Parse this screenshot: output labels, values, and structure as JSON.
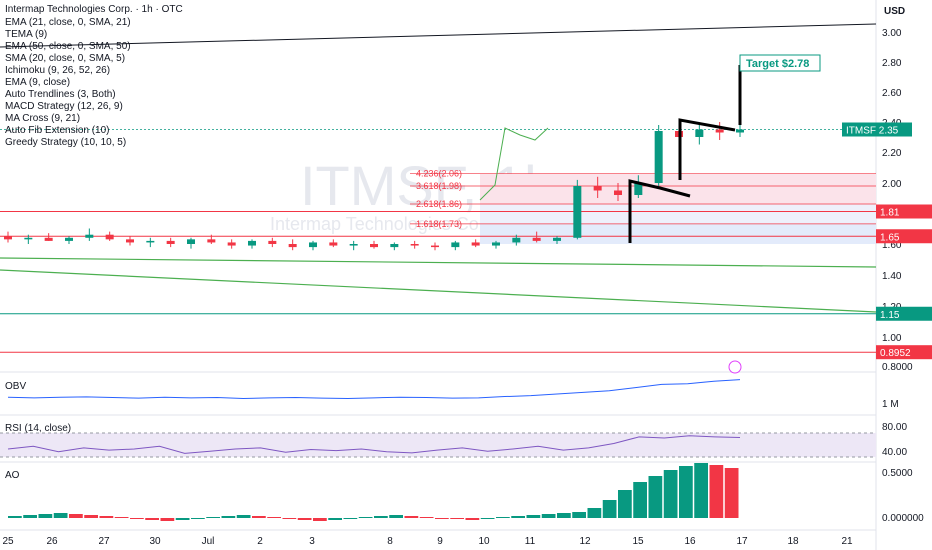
{
  "header": {
    "symbol_line": "Intermap Technologies Corp. · 1h · OTC",
    "currency": "USD",
    "watermark": "ITMSF, 1h",
    "watermark_sub": "Intermap Technologies Corp."
  },
  "indicators": [
    "EMA (21, close, 0, SMA, 21)",
    "TEMA (9)",
    "EMA (50, close, 0, SMA, 50)",
    "SMA (20, close, 0, SMA, 5)",
    "Ichimoku (9, 26, 52, 26)",
    "EMA (9, close)",
    "Auto Trendlines (3, Both)",
    "MACD Strategy (12, 26, 9)",
    "MA Cross (9, 21)",
    "Auto Fib Extension (10)",
    "Greedy Strategy (10, 10, 5)"
  ],
  "panes": {
    "obv": "OBV",
    "rsi": "RSI (14, close)",
    "ao": "AO"
  },
  "colors": {
    "up": "#089981",
    "down": "#f23645",
    "blue": "#2962ff",
    "green": "#4caf50",
    "black": "#000000",
    "fib_band": "#f7a8b8",
    "fib_blue": "#b2c4f0"
  },
  "chart_data": {
    "type": "candlestick",
    "title": "Intermap Technologies Corp. · 1h · OTC",
    "x_ticks": [
      "25",
      "26",
      "27",
      "30",
      "Jul",
      "2",
      "3",
      "8",
      "9",
      "10",
      "11",
      "12",
      "15",
      "16",
      "17",
      "18",
      "21"
    ],
    "price_ticks": [
      "3.00",
      "2.80",
      "2.60",
      "2.40",
      "2.20",
      "2.00",
      "1.80",
      "1.60",
      "1.40",
      "1.20",
      "1.00",
      "0.8000"
    ],
    "price_ylim": [
      0.8,
      3.05
    ],
    "price_labels": [
      {
        "text": "ITMSF",
        "value": "2.35",
        "color": "#089981"
      },
      {
        "text": "",
        "value": "1.81",
        "color": "#f23645"
      },
      {
        "text": "",
        "value": "1.65",
        "color": "#f23645"
      },
      {
        "text": "",
        "value": "1.15",
        "color": "#089981"
      },
      {
        "text": "",
        "value": "0.8952",
        "color": "#f23645"
      }
    ],
    "target": "Target $2.78",
    "fib_levels": [
      {
        "label": "4.236(2.06)",
        "value": 2.06
      },
      {
        "label": "3.618(1.98)",
        "value": 1.98
      },
      {
        "label": "2.618(1.86)",
        "value": 1.86
      },
      {
        "label": "1.618(1.73)",
        "value": 1.73
      }
    ],
    "obv_ticks": [
      "1 M"
    ],
    "rsi_ticks": [
      "80.00",
      "40.00"
    ],
    "ao_ticks": [
      "0.5000",
      "0.000000"
    ],
    "ohlc_approx": [
      [
        1.65,
        1.68,
        1.61,
        1.63
      ],
      [
        1.63,
        1.66,
        1.6,
        1.64
      ],
      [
        1.64,
        1.67,
        1.62,
        1.62
      ],
      [
        1.62,
        1.65,
        1.6,
        1.64
      ],
      [
        1.64,
        1.7,
        1.62,
        1.66
      ],
      [
        1.66,
        1.68,
        1.62,
        1.63
      ],
      [
        1.63,
        1.65,
        1.59,
        1.61
      ],
      [
        1.61,
        1.64,
        1.58,
        1.62
      ],
      [
        1.62,
        1.64,
        1.58,
        1.6
      ],
      [
        1.6,
        1.64,
        1.57,
        1.63
      ],
      [
        1.63,
        1.66,
        1.6,
        1.61
      ],
      [
        1.61,
        1.63,
        1.57,
        1.59
      ],
      [
        1.59,
        1.63,
        1.57,
        1.62
      ],
      [
        1.62,
        1.64,
        1.58,
        1.6
      ],
      [
        1.6,
        1.63,
        1.56,
        1.58
      ],
      [
        1.58,
        1.62,
        1.56,
        1.61
      ],
      [
        1.61,
        1.63,
        1.58,
        1.59
      ],
      [
        1.59,
        1.62,
        1.56,
        1.6
      ],
      [
        1.6,
        1.62,
        1.57,
        1.58
      ],
      [
        1.58,
        1.61,
        1.56,
        1.6
      ],
      [
        1.6,
        1.62,
        1.57,
        1.59
      ],
      [
        1.59,
        1.61,
        1.56,
        1.58
      ],
      [
        1.58,
        1.62,
        1.56,
        1.61
      ],
      [
        1.61,
        1.63,
        1.58,
        1.59
      ],
      [
        1.59,
        1.62,
        1.57,
        1.61
      ],
      [
        1.61,
        1.66,
        1.59,
        1.64
      ],
      [
        1.64,
        1.68,
        1.61,
        1.62
      ],
      [
        1.62,
        1.65,
        1.6,
        1.64
      ],
      [
        1.64,
        2.02,
        1.63,
        1.98
      ],
      [
        1.98,
        2.04,
        1.9,
        1.95
      ],
      [
        1.95,
        2.0,
        1.88,
        1.92
      ],
      [
        1.92,
        2.05,
        1.9,
        2.0
      ],
      [
        2.0,
        2.38,
        1.98,
        2.34
      ],
      [
        2.34,
        2.4,
        2.26,
        2.3
      ],
      [
        2.3,
        2.38,
        2.25,
        2.35
      ],
      [
        2.35,
        2.4,
        2.28,
        2.33
      ],
      [
        2.33,
        2.4,
        2.3,
        2.35
      ]
    ],
    "obv_approx": [
      0.4,
      0.38,
      0.4,
      0.41,
      0.39,
      0.37,
      0.4,
      0.38,
      0.39,
      0.36,
      0.38,
      0.39,
      0.37,
      0.36,
      0.38,
      0.4,
      0.39,
      0.37,
      0.38,
      0.42,
      0.45,
      0.5,
      0.55,
      0.6,
      0.7,
      0.8,
      0.82,
      0.9,
      0.95
    ],
    "rsi_approx": [
      50,
      55,
      45,
      52,
      48,
      50,
      55,
      42,
      46,
      50,
      52,
      44,
      49,
      47,
      50,
      45,
      43,
      48,
      52,
      46,
      50,
      55,
      48,
      52,
      60,
      72,
      70,
      74,
      72,
      71
    ],
    "ao_approx": [
      0.02,
      0.03,
      0.04,
      0.05,
      0.04,
      0.03,
      0.02,
      0.01,
      -0.01,
      -0.02,
      -0.03,
      -0.02,
      -0.01,
      0.01,
      0.02,
      0.03,
      0.02,
      0.01,
      -0.01,
      -0.02,
      -0.03,
      -0.02,
      -0.01,
      0.01,
      0.02,
      0.03,
      0.02,
      0.01,
      0.0,
      -0.01,
      -0.02,
      -0.01,
      0.01,
      0.02,
      0.03,
      0.04,
      0.05,
      0.06,
      0.1,
      0.18,
      0.28,
      0.36,
      0.42,
      0.48,
      0.52,
      0.55,
      0.53,
      0.5
    ]
  }
}
